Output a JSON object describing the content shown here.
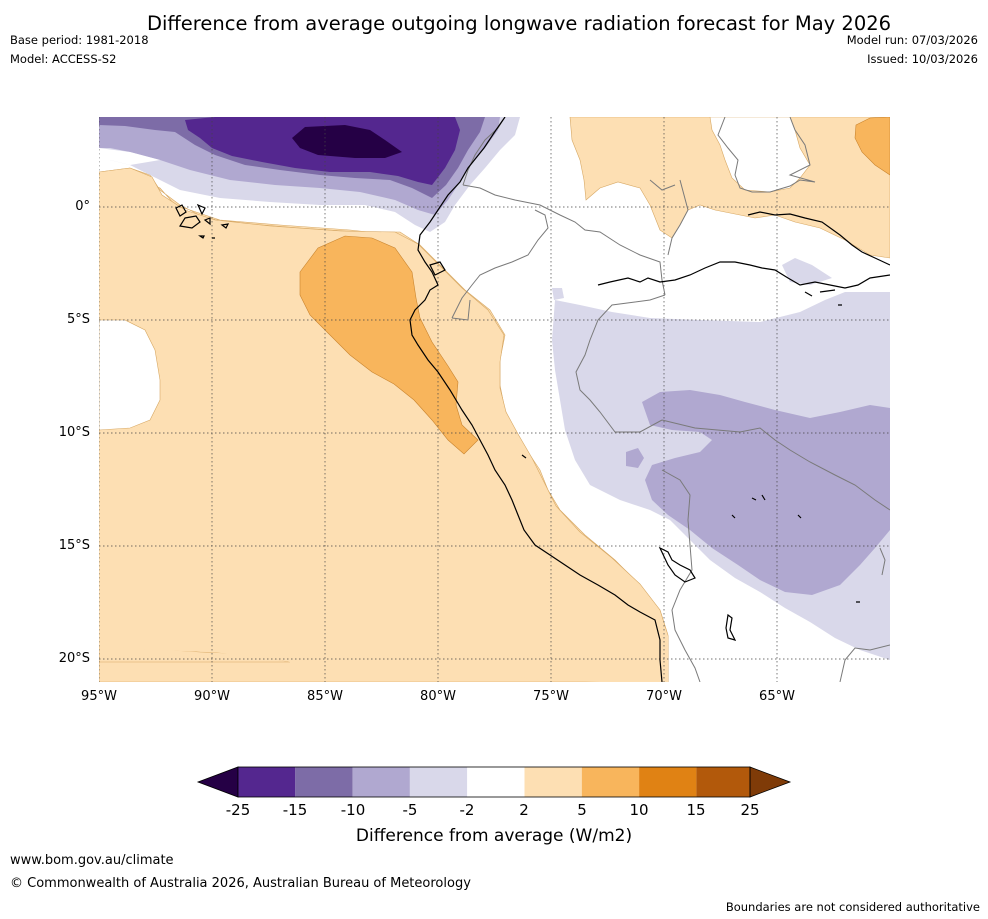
{
  "header": {
    "title": "Difference from average outgoing longwave radiation forecast for May 2026",
    "base_period": "Base period: 1981-2018",
    "model": "Model: ACCESS-S2",
    "model_run": "Model run: 07/03/2026",
    "issued": "Issued: 10/03/2026"
  },
  "map": {
    "lat_labels": [
      "0°",
      "5°S",
      "10°S",
      "15°S",
      "20°S"
    ],
    "lon_labels": [
      "95°W",
      "90°W",
      "85°W",
      "80°W",
      "75°W",
      "70°W",
      "65°W"
    ]
  },
  "colorbar": {
    "ticks": [
      "-25",
      "-15",
      "-10",
      "-5",
      "-2",
      "2",
      "5",
      "10",
      "15",
      "25"
    ],
    "colors": [
      "#250045",
      "#54278f",
      "#7d6ca7",
      "#b0a8d0",
      "#d9d8ea",
      "#ffffff",
      "#fddfb3",
      "#f8b55c",
      "#e08214",
      "#b2590b",
      "#7f3b08"
    ],
    "label": "Difference from average (W/m2)"
  },
  "footer": {
    "website": "www.bom.gov.au/climate",
    "copyright": "© Commonwealth of Australia 2026, Australian Bureau of Meteorology",
    "disclaimer": "Boundaries are not considered authoritative"
  }
}
